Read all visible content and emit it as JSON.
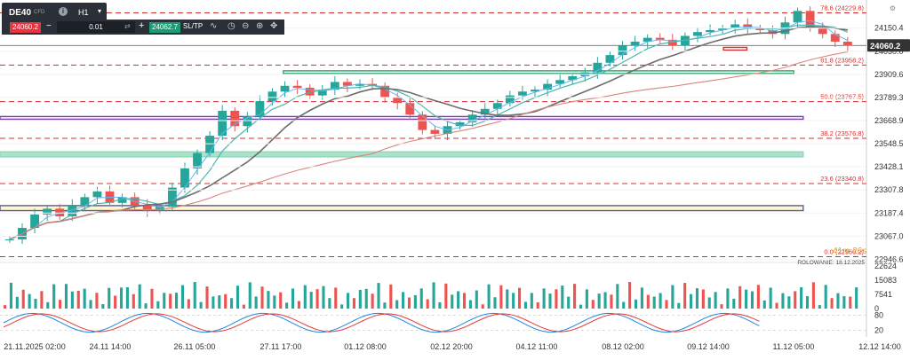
{
  "toolbar": {
    "symbol": "DE40",
    "instrument_type": "CFD",
    "info_icon": "i",
    "timeframe": "H1",
    "timeframe_icon": "chevron-down-icon",
    "sell_price": "24060.2",
    "minus_label": "−",
    "quantity": "0.01",
    "qty_icon": "swap-arrows-icon",
    "plus_label": "+",
    "buy_price": "24062.7",
    "sltp_label": "SL/TP",
    "tools": [
      "line-chart-icon",
      "clock-icon",
      "zoom-out-icon",
      "zoom-in-icon",
      "crosshair-icon"
    ]
  },
  "corner_icon": "settings-icon",
  "chart_data": [
    {
      "type": "line",
      "panel": "price",
      "instrument": "DE40",
      "timeframe": "H1",
      "y_tick_labels": [
        "24150.4",
        "24030.0",
        "23909.6",
        "23789.3",
        "23668.9",
        "23548.5",
        "23428.1",
        "23307.8",
        "23187.4",
        "23067.0",
        "22946.6"
      ],
      "ylim": [
        22930,
        24260
      ],
      "current_price_label": "24060.2",
      "current_price": 24060.2,
      "x_tick_labels": [
        "21.11.2025 02:00",
        "24.11 14:00",
        "26.11 05:00",
        "27.11 17:00",
        "01.12 08:00",
        "02.12 20:00",
        "04.12 11:00",
        "08.12 02:00",
        "09.12 14:00",
        "11.12 05:00",
        "12.12 14:00"
      ],
      "fibonacci_levels": [
        {
          "label": "78.6 (24229.8)",
          "value": 24229.8
        },
        {
          "label": "61.8 (23958.2)",
          "value": 23958.2
        },
        {
          "label": "50.0 (23767.5)",
          "value": 23767.5
        },
        {
          "label": "38.2 (23576.8)",
          "value": 23576.8
        },
        {
          "label": "23.6 (23340.8)",
          "value": 23340.8
        },
        {
          "label": "0.0 (22960.2)",
          "value": 22960.2
        }
      ],
      "series": [
        {
          "values": [
            23050,
            23110,
            23180,
            23210,
            23170,
            23230,
            23270,
            23300,
            23240,
            23270,
            23230,
            23200,
            23220,
            23320,
            23420,
            23500,
            23590,
            23720,
            23640,
            23690,
            23770,
            23820,
            23850,
            23840,
            23800,
            23830,
            23870,
            23850,
            23860,
            23850,
            23790,
            23760,
            23700,
            23620,
            23600,
            23640,
            23660,
            23700,
            23730,
            23760,
            23800,
            23820,
            23830,
            23860,
            23880,
            23900,
            23920,
            23970,
            24010,
            24060,
            24080,
            24100,
            24090,
            24060,
            24110,
            24130,
            24140,
            24150,
            24170,
            24150,
            24140,
            24120,
            24180,
            24240,
            24150,
            24120,
            24080,
            24060
          ]
        }
      ],
      "zones": [
        {
          "type": "rectangle",
          "color": "#e8b4b8",
          "note": "red box near latest price"
        },
        {
          "type": "rectangle",
          "color": "#2ea36b",
          "note": "green border box"
        },
        {
          "type": "rectangle",
          "color": "#7a3fa8",
          "note": "purple border box"
        },
        {
          "type": "rectangle",
          "color": "#8fd8b8",
          "note": "teal filled box"
        },
        {
          "type": "rectangle",
          "color": "#fff4b8",
          "note": "yellow filled box"
        }
      ],
      "overlay_text": {
        "countdown": "41m 26s",
        "rollover": "ROLOWANIE: 18.12.2025"
      },
      "colors": {
        "up": "#26a69a",
        "down": "#ef5350",
        "ma_fast": "#4db6ac",
        "ma_slow": "#6d6d6d",
        "ma_long": "#d9867a",
        "ma_blue": "#64b5f6",
        "fib": "#d32f2f"
      }
    },
    {
      "type": "bar",
      "panel": "volume",
      "y_tick_labels": [
        "22624",
        "15083",
        "7541",
        "0"
      ],
      "ylim": [
        0,
        22624
      ],
      "colors": {
        "up": "#26a69a",
        "down": "#ef5350"
      }
    },
    {
      "type": "line",
      "panel": "oscillator",
      "y_tick_labels": [
        "80",
        "20"
      ],
      "ylim": [
        0,
        100
      ],
      "levels": [
        80,
        20
      ],
      "colors": {
        "k": "#1e88e5",
        "d": "#e53935"
      }
    }
  ]
}
